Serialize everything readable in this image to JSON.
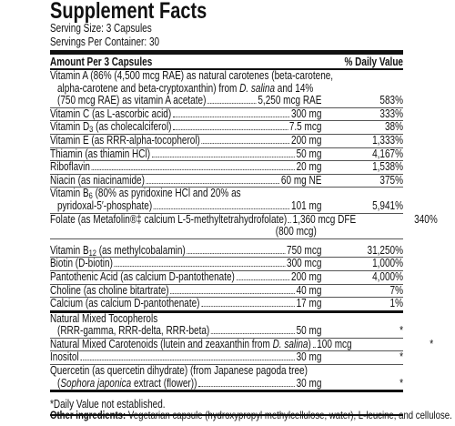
{
  "header": {
    "title": "Supplement Facts",
    "serving_size": "Serving Size: 3 Capsules",
    "servings_per_container": "Servings Per Container: 30"
  },
  "table": {
    "columns": [
      "Amount Per 3 Capsules",
      "% Daily Value"
    ],
    "sections": [
      {
        "rows": [
          {
            "name": [
              [
                "Vitamin A (86% (4,500 mcg RAE) as natural carotenes (beta-carotene,"
              ],
              [
                "alpha-carotene and beta-cryptoxanthin) from ",
                {
                  "text": "D. salina",
                  "style": "italic"
                },
                " and 14%"
              ],
              [
                "(750 mcg RAE) as vitamin A acetate)"
              ]
            ],
            "amount": "5,250 mcg RAE",
            "daily_value": "583%"
          },
          {
            "name": [
              [
                "Vitamin C (as L-ascorbic acid)"
              ]
            ],
            "amount": "300 mg",
            "daily_value": "333%"
          },
          {
            "name": [
              [
                "Vitamin D",
                {
                  "text": "3",
                  "style": "sub"
                },
                " (as cholecalciferol)"
              ]
            ],
            "amount": "7.5 mcg",
            "daily_value": "38%"
          },
          {
            "name": [
              [
                "Vitamin E (as RRR-alpha-tocopherol)"
              ]
            ],
            "amount": "200 mg",
            "daily_value": "1,333%"
          },
          {
            "name": [
              [
                "Thiamin (as thiamin HCl)"
              ]
            ],
            "amount": "50 mg",
            "daily_value": "4,167%"
          },
          {
            "name": [
              [
                "Riboflavin"
              ]
            ],
            "amount": "20 mg",
            "daily_value": "1,538%"
          },
          {
            "name": [
              [
                "Niacin (as niacinamide)"
              ]
            ],
            "amount": "60 mg NE",
            "daily_value": "375%"
          },
          {
            "name": [
              [
                "Vitamin B",
                {
                  "text": "6",
                  "style": "sub"
                },
                " (80% as pyridoxine HCl and 20% as"
              ],
              [
                "pyridoxal-5′-phosphate)"
              ]
            ],
            "amount": "101 mg",
            "daily_value": "5,941%"
          },
          {
            "name": [
              [
                "Folate (as Metafolin®‡ calcium L-5-methyltetrahydrofolate)"
              ]
            ],
            "amount": "1,360 mcg DFE",
            "amount_note": "(800 mcg)",
            "daily_value": "340%"
          },
          {
            "name": [
              [
                "Vitamin B",
                {
                  "text": "12",
                  "style": "sub"
                },
                " (as methylcobalamin)"
              ]
            ],
            "amount": "750 mcg",
            "daily_value": "31,250%"
          },
          {
            "name": [
              [
                "Biotin (D-biotin)"
              ]
            ],
            "amount": "300 mcg",
            "daily_value": "1,000%"
          },
          {
            "name": [
              [
                "Pantothenic Acid (as calcium D-pantothenate)"
              ]
            ],
            "amount": "200 mg",
            "daily_value": "4,000%"
          },
          {
            "name": [
              [
                "Choline (as choline bitartrate)"
              ]
            ],
            "amount": "40 mg",
            "daily_value": "7%"
          },
          {
            "name": [
              [
                "Calcium (as calcium D-pantothenate)"
              ]
            ],
            "amount": "17 mg",
            "daily_value": "1%"
          }
        ]
      },
      {
        "rows": [
          {
            "name": [
              [
                "Natural Mixed Tocopherols"
              ],
              [
                "(RRR-gamma, RRR-delta, RRR-beta)"
              ]
            ],
            "amount": "50 mg",
            "daily_value": "*"
          },
          {
            "name": [
              [
                "Natural Mixed Carotenoids (lutein and zeaxanthin from ",
                {
                  "text": "D. salina",
                  "style": "italic"
                },
                ")"
              ]
            ],
            "amount": "100 mcg",
            "daily_value": "*"
          },
          {
            "name": [
              [
                "Inositol"
              ]
            ],
            "amount": "30 mg",
            "daily_value": "*"
          },
          {
            "name": [
              [
                "Quercetin (as quercetin dihydrate) (from Japanese pagoda tree)"
              ],
              [
                "(",
                {
                  "text": "Sophora japonica",
                  "style": "italic"
                },
                " extract (flower))"
              ]
            ],
            "amount": "30 mg",
            "daily_value": "*"
          }
        ]
      }
    ]
  },
  "footnote": "*Daily Value not established.",
  "other_ingredients": {
    "label": "Other ingredients:",
    "text": "Vegetarian capsule (hydroxypropyl methylcellulose, water), L-leucine, and cellulose."
  }
}
